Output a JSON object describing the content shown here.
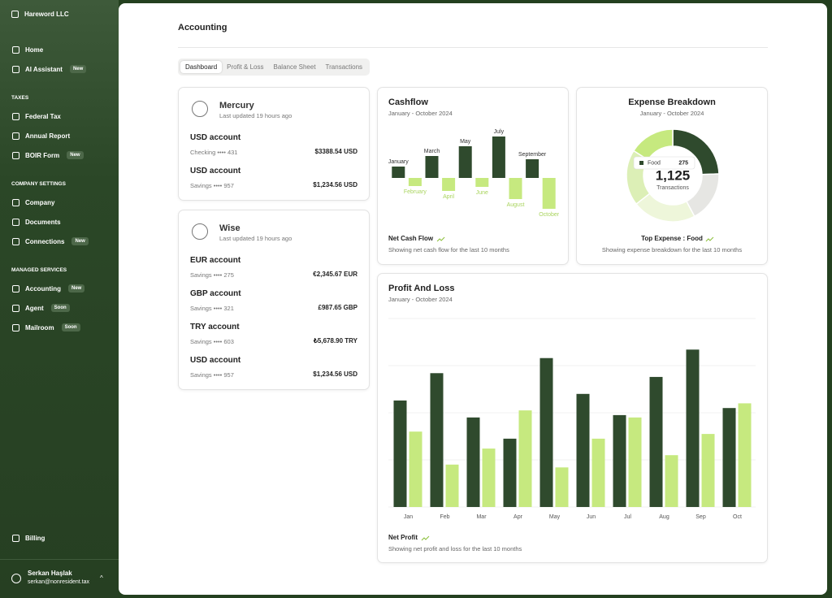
{
  "sidebar": {
    "org": "Hareword LLC",
    "top_items": [
      {
        "label": "Home"
      },
      {
        "label": "AI Assistant",
        "badge": "New"
      }
    ],
    "sections": [
      {
        "title": "TAXES",
        "items": [
          {
            "label": "Federal Tax"
          },
          {
            "label": "Annual Report"
          },
          {
            "label": "BOIR Form",
            "badge": "New"
          }
        ]
      },
      {
        "title": "COMPANY SETTINGS",
        "items": [
          {
            "label": "Company"
          },
          {
            "label": "Documents"
          },
          {
            "label": "Connections",
            "badge": "New"
          }
        ]
      },
      {
        "title": "MANAGED SERVICES",
        "items": [
          {
            "label": "Accounting",
            "badge": "New"
          },
          {
            "label": "Agent",
            "badge": "Soon"
          },
          {
            "label": "Mailroom",
            "badge": "Soon"
          }
        ]
      }
    ],
    "billing": "Billing",
    "user": {
      "name": "Serkan Haşlak",
      "email": "serkan@nonresident.tax"
    }
  },
  "header": {
    "title": "Accounting",
    "tabs": [
      "Dashboard",
      "Profit & Loss",
      "Balance Sheet",
      "Transactions"
    ]
  },
  "banks": [
    {
      "name": "Mercury",
      "updated": "Last updated 19 hours ago",
      "accounts": [
        {
          "name": "USD account",
          "detail": "Checking •••• 431",
          "balance": "$3388.54 USD"
        },
        {
          "name": "USD account",
          "detail": "Savings •••• 957",
          "balance": "$1,234.56 USD"
        }
      ]
    },
    {
      "name": "Wise",
      "updated": "Last updated 19 hours ago",
      "accounts": [
        {
          "name": "EUR account",
          "detail": "Savings •••• 275",
          "balance": "€2,345.67 EUR"
        },
        {
          "name": "GBP account",
          "detail": "Savings •••• 321",
          "balance": "£987.65 GBP"
        },
        {
          "name": "TRY account",
          "detail": "Savings •••• 603",
          "balance": "₺5,678.90 TRY"
        },
        {
          "name": "USD account",
          "detail": "Savings •••• 957",
          "balance": "$1,234.56 USD"
        }
      ]
    }
  ],
  "chart_data": [
    {
      "type": "bar",
      "title": "Cashflow",
      "subtitle": "January - October 2024",
      "categories": [
        "January",
        "February",
        "March",
        "April",
        "May",
        "June",
        "July",
        "August",
        "September",
        "October"
      ],
      "values": [
        14,
        -10,
        27,
        -16,
        39,
        -11,
        51,
        -26,
        23,
        -38
      ],
      "positive_color": "#2f4a2d",
      "negative_color": "#c6e97f",
      "ylim": [
        -40,
        55
      ],
      "footer": "Net Cash Flow",
      "caption": "Showing net cash flow for the last 10 months"
    },
    {
      "type": "pie",
      "title": "Expense Breakdown",
      "subtitle": "January - October 2024",
      "categories": [
        "Food",
        null,
        null,
        null,
        null
      ],
      "values": [
        275,
        200,
        250,
        220,
        180
      ],
      "colors": [
        "#2f4a2d",
        "#e6e6e3",
        "#eef6da",
        "#dcefb6",
        "#c6e97f"
      ],
      "total": {
        "value": 1125,
        "label": "1,125"
      },
      "total_label": "Transactions",
      "footer": "Top Expense : Food",
      "caption": "Showing expense breakdown for the last 10 months"
    },
    {
      "type": "grouped-bar",
      "title": "Profit And Loss",
      "subtitle": "January - October 2024",
      "categories": [
        "Jan",
        "Feb",
        "Mar",
        "Apr",
        "May",
        "Jun",
        "Jul",
        "Aug",
        "Sep",
        "Oct"
      ],
      "series": [
        {
          "color": "#2f4a2d",
          "values": [
            226,
            284,
            190,
            145,
            316,
            240,
            195,
            276,
            334,
            210
          ]
        },
        {
          "color": "#c6e97f",
          "values": [
            160,
            90,
            124,
            205,
            84,
            145,
            190,
            110,
            155,
            220
          ]
        }
      ],
      "ylim": [
        0,
        400
      ],
      "gridlines": [
        0,
        100,
        200,
        300,
        400
      ],
      "grid": true,
      "footer": "Net Profit",
      "caption": "Showing net profit and loss for the last 10 months"
    }
  ]
}
